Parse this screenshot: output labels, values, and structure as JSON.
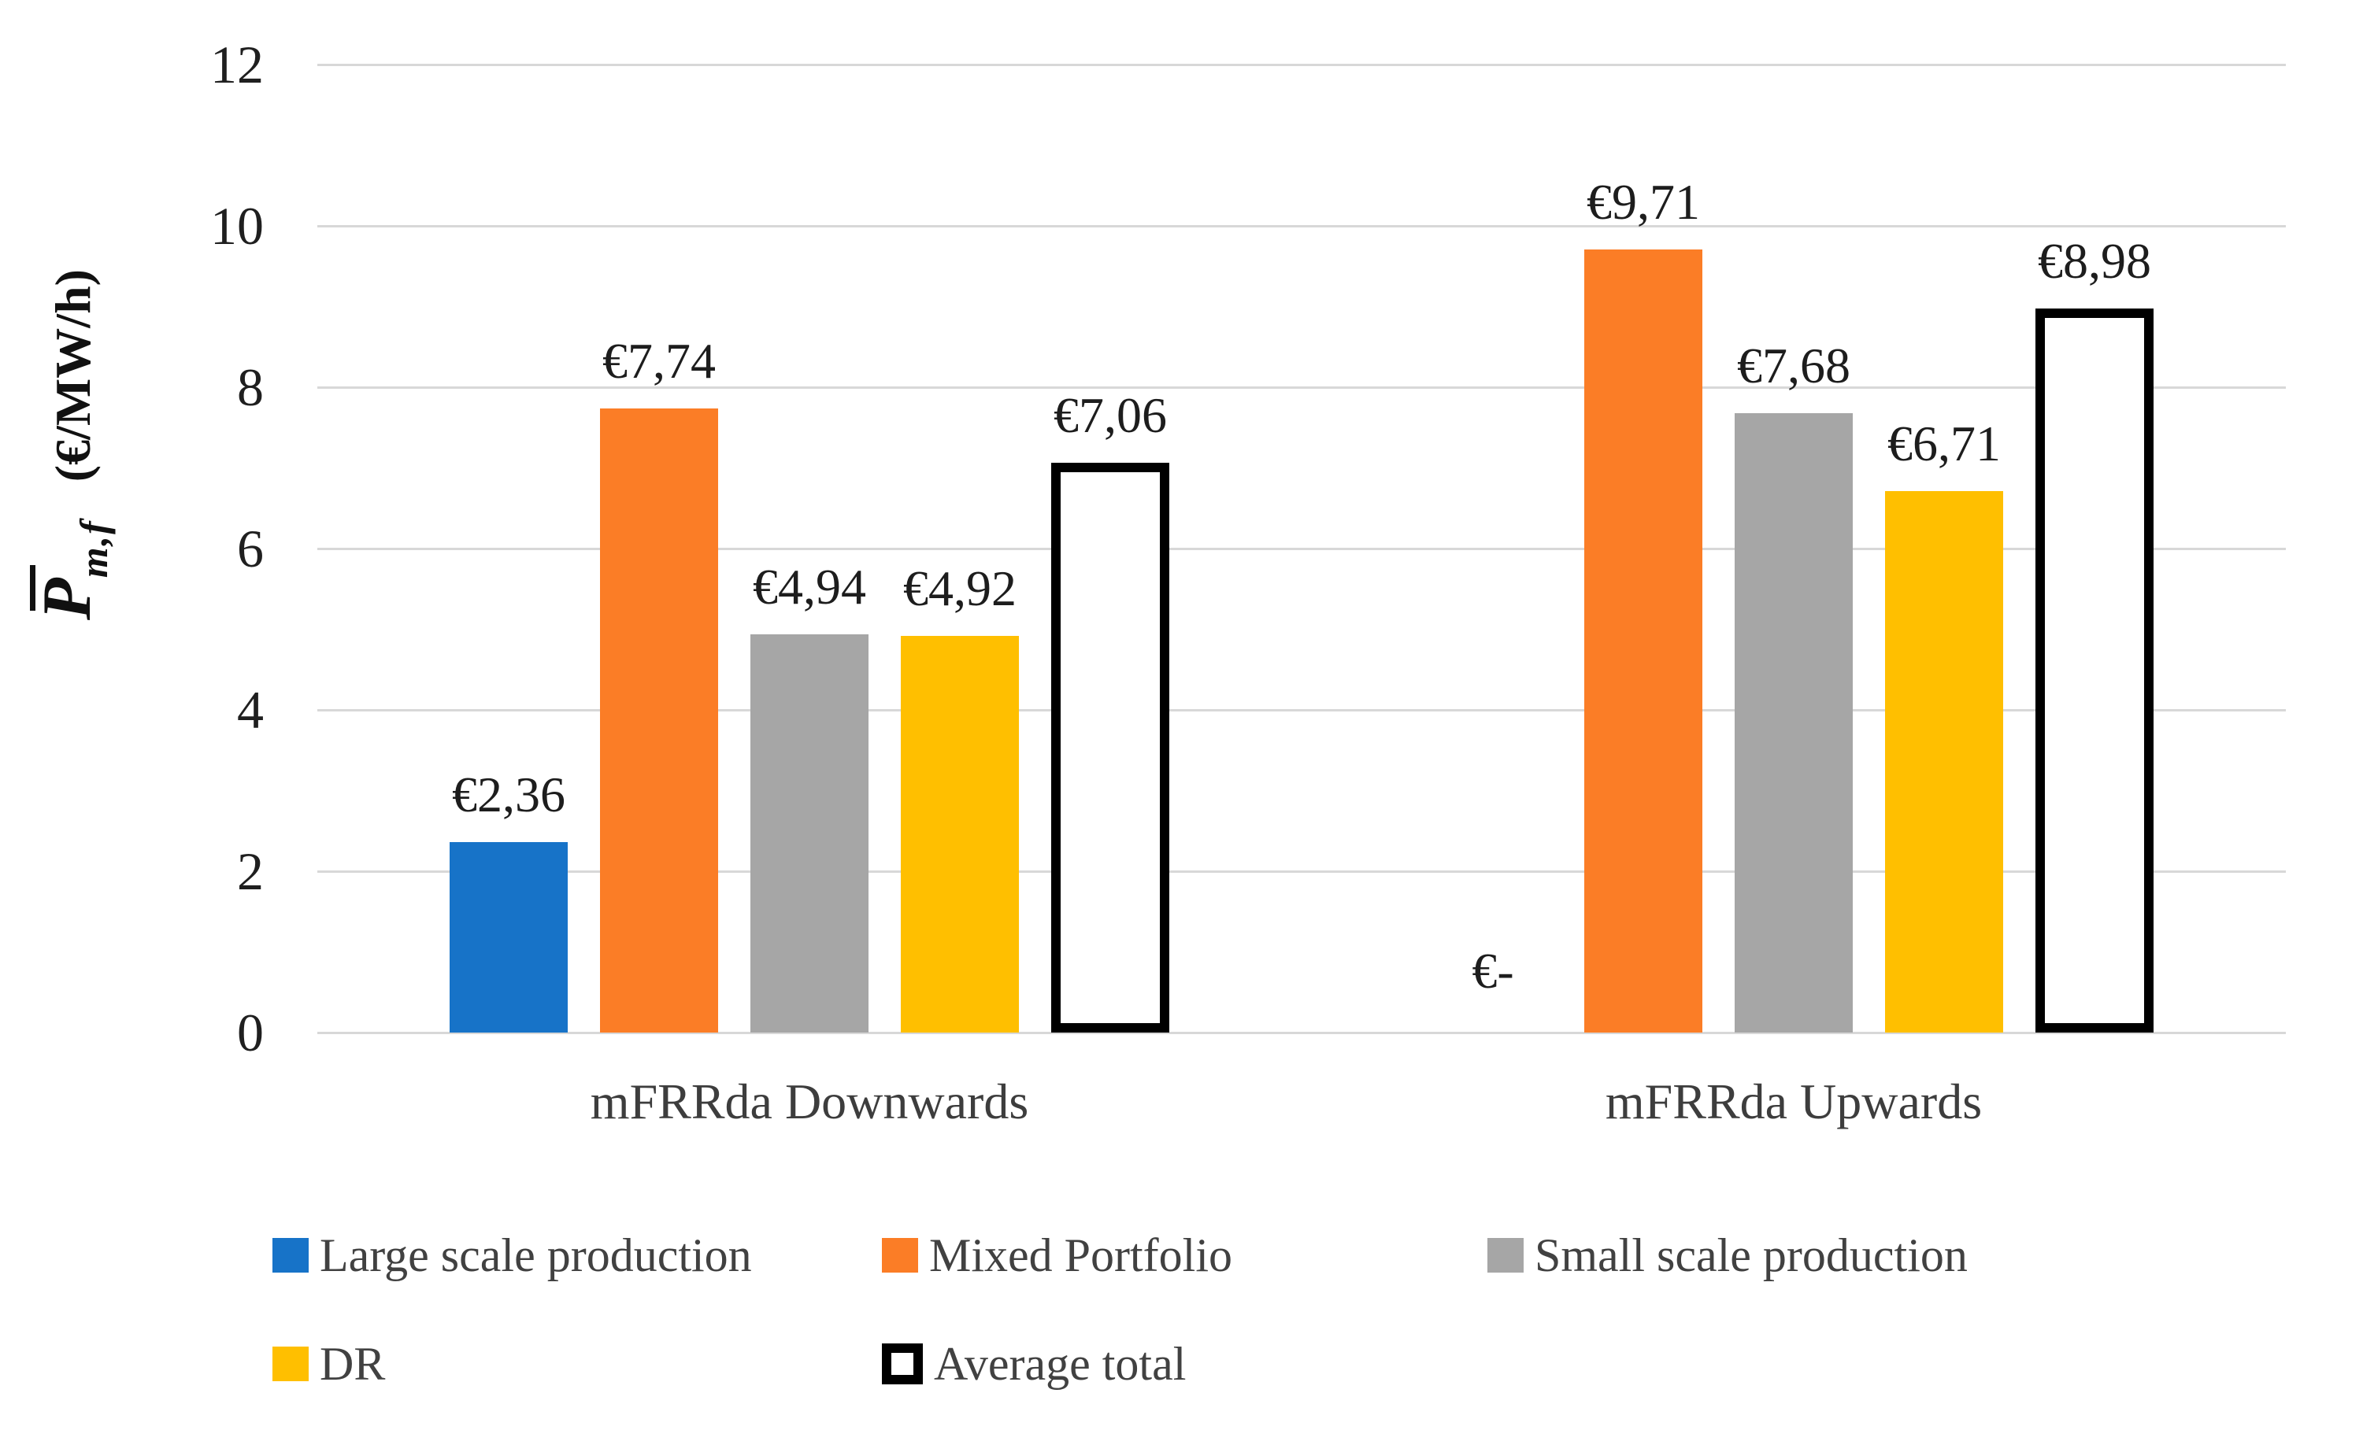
{
  "chart_data": {
    "type": "bar",
    "title": "",
    "xlabel": "",
    "ylabel_parts": {
      "symbol": "P",
      "has_overbar": true,
      "subscript": "m,f",
      "unit": "(€/MW/h)"
    },
    "ylim": [
      0,
      12
    ],
    "ytick_step": 2,
    "yticks": [
      "0",
      "2",
      "4",
      "6",
      "8",
      "10",
      "12"
    ],
    "grid": true,
    "legend_position": "bottom",
    "categories": [
      "mFRRda Downwards",
      "mFRRda Upwards"
    ],
    "series": [
      {
        "name": "Large scale production",
        "color": "#1773C8",
        "border": null,
        "values": [
          2.36,
          0
        ],
        "labels": [
          "€2,36",
          "€-"
        ]
      },
      {
        "name": "Mixed Portfolio",
        "color": "#FB7D26",
        "border": null,
        "values": [
          7.74,
          9.71
        ],
        "labels": [
          "€7,74",
          "€9,71"
        ]
      },
      {
        "name": "Small scale production",
        "color": "#A6A6A6",
        "border": null,
        "values": [
          4.94,
          7.68
        ],
        "labels": [
          "€4,94",
          "€7,68"
        ]
      },
      {
        "name": "DR",
        "color": "#FFBF00",
        "border": null,
        "values": [
          4.92,
          6.71
        ],
        "labels": [
          "€4,92",
          "€6,71"
        ]
      },
      {
        "name": "Average total",
        "color": "#FFFFFF",
        "border": "#000000",
        "values": [
          7.06,
          8.98
        ],
        "labels": [
          "€7,06",
          "€8,98"
        ]
      }
    ],
    "legend_rows": [
      [
        "Large scale production",
        "Mixed Portfolio",
        "Small scale production"
      ],
      [
        "DR",
        "Average total"
      ]
    ]
  }
}
